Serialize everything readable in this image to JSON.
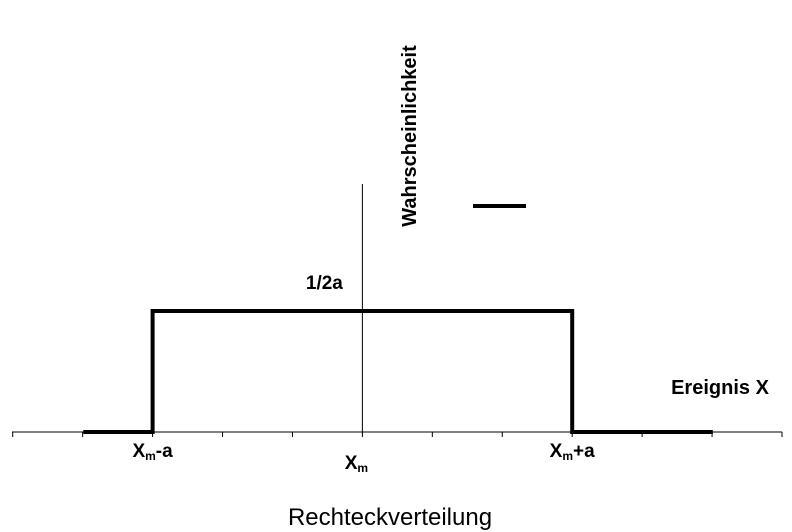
{
  "chart_data": {
    "type": "line",
    "title": "Rechteckverteilung",
    "xlabel": "Ereignis X",
    "ylabel": "Wahrscheinlichkeit",
    "x_ticks": [
      {
        "value": -1,
        "label": "X",
        "sub": "m",
        "suffix": "-a"
      },
      {
        "value": 0,
        "label": "X",
        "sub": "m",
        "suffix": ""
      },
      {
        "value": 1,
        "label": "X",
        "sub": "m",
        "suffix": "+a"
      }
    ],
    "y_annotation": "1/2a",
    "series": [
      {
        "x": [
          -1.33,
          -1,
          -1,
          1,
          1,
          1.67
        ],
        "y": [
          0,
          0,
          1,
          1,
          0,
          0
        ]
      }
    ],
    "xlim": [
      -1.67,
      2
    ],
    "ylim": [
      0,
      2.05
    ],
    "grid": false,
    "legend": "top-center",
    "colors": {
      "line": "#000000",
      "axis": "#000000"
    }
  }
}
